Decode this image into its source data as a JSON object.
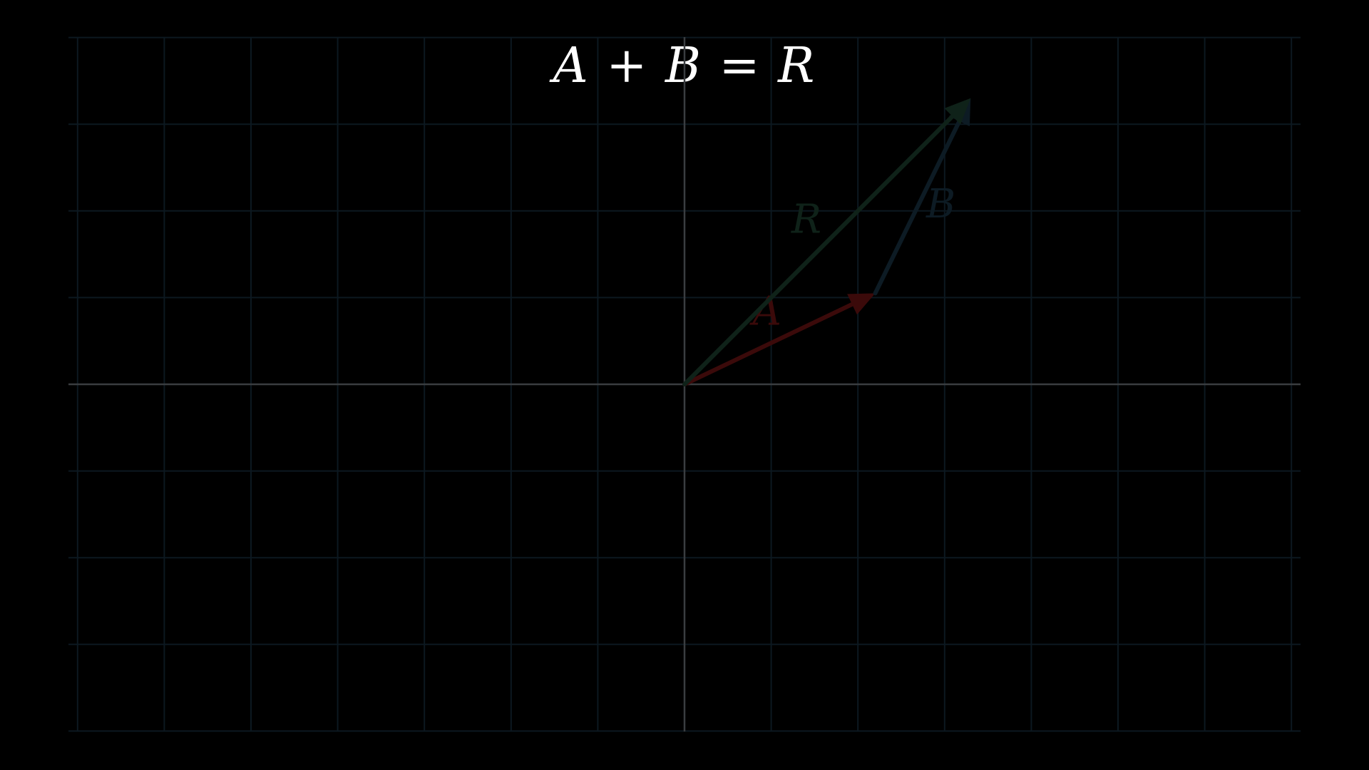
{
  "equation": "A + B = R",
  "colors": {
    "background": "#000000",
    "grid": "#0c1820",
    "axis": "#3a3d40",
    "equation": "#ffffff",
    "vector_A": "#3b0a0a",
    "vector_B": "#0d1b24",
    "vector_R": "#0f2219"
  },
  "grid": {
    "x_range": [
      -7,
      7
    ],
    "y_range": [
      -4,
      4
    ],
    "step": 1
  },
  "vectors": [
    {
      "id": "A",
      "label": "A",
      "from": [
        0,
        0
      ],
      "to": [
        2.2,
        1.05
      ],
      "color": "#3b0a0a"
    },
    {
      "id": "B",
      "label": "B",
      "from": [
        2.2,
        1.05
      ],
      "to": [
        3.3,
        3.3
      ],
      "color": "#0d1b24"
    },
    {
      "id": "R",
      "label": "R",
      "from": [
        0,
        0
      ],
      "to": [
        3.3,
        3.3
      ],
      "color": "#0f2219"
    }
  ]
}
